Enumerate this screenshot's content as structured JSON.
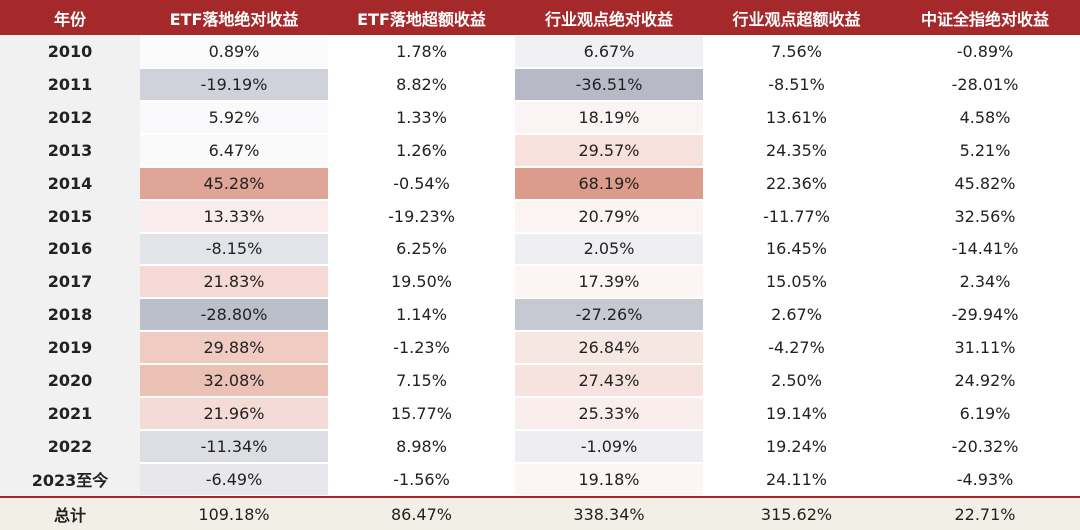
{
  "colors": {
    "header_bg": "#a5282a",
    "year_col_bg": "#f1f1f1",
    "total_bg": "#f2f0e6",
    "heat_high": "#dc9b8b",
    "heat_low": "#b4b8c4",
    "neutral": "#ffffff"
  },
  "headers": [
    "年份",
    "ETF落地绝对收益",
    "ETF落地超额收益",
    "行业观点绝对收益",
    "行业观点超额收益",
    "中证全指绝对收益"
  ],
  "rows": [
    {
      "year": "2010",
      "values": [
        "0.89%",
        "1.78%",
        "6.67%",
        "7.56%",
        "-0.89%"
      ],
      "bg": [
        "#fbfbfc",
        "#ffffff",
        "#f1f1f4",
        "#ffffff",
        "#ffffff"
      ]
    },
    {
      "year": "2011",
      "values": [
        "-19.19%",
        "8.82%",
        "-36.51%",
        "-8.51%",
        "-28.01%"
      ],
      "bg": [
        "#cfd2da",
        "#ffffff",
        "#b7bac6",
        "#ffffff",
        "#ffffff"
      ]
    },
    {
      "year": "2012",
      "values": [
        "5.92%",
        "1.33%",
        "18.19%",
        "13.61%",
        "4.58%"
      ],
      "bg": [
        "#fafafc",
        "#ffffff",
        "#fbf4f4",
        "#ffffff",
        "#ffffff"
      ]
    },
    {
      "year": "2013",
      "values": [
        "6.47%",
        "1.26%",
        "29.57%",
        "24.35%",
        "5.21%"
      ],
      "bg": [
        "#fbfafb",
        "#ffffff",
        "#f6e1dc",
        "#ffffff",
        "#ffffff"
      ]
    },
    {
      "year": "2014",
      "values": [
        "45.28%",
        "-0.54%",
        "68.19%",
        "22.36%",
        "45.82%"
      ],
      "bg": [
        "#dfa597",
        "#ffffff",
        "#dc9c8b",
        "#ffffff",
        "#ffffff"
      ]
    },
    {
      "year": "2015",
      "values": [
        "13.33%",
        "-19.23%",
        "20.79%",
        "-11.77%",
        "32.56%"
      ],
      "bg": [
        "#f8ecec",
        "#ffffff",
        "#fbf4f3",
        "#ffffff",
        "#ffffff"
      ]
    },
    {
      "year": "2016",
      "values": [
        "-8.15%",
        "6.25%",
        "2.05%",
        "16.45%",
        "-14.41%"
      ],
      "bg": [
        "#e3e4e9",
        "#ffffff",
        "#efeff2",
        "#ffffff",
        "#ffffff"
      ]
    },
    {
      "year": "2017",
      "values": [
        "21.83%",
        "19.50%",
        "17.39%",
        "15.05%",
        "2.34%"
      ],
      "bg": [
        "#f4d9d4",
        "#ffffff",
        "#fbf5f4",
        "#ffffff",
        "#ffffff"
      ]
    },
    {
      "year": "2018",
      "values": [
        "-28.80%",
        "1.14%",
        "-27.26%",
        "2.67%",
        "-29.94%"
      ],
      "bg": [
        "#bbbfca",
        "#ffffff",
        "#c6c9d2",
        "#ffffff",
        "#ffffff"
      ]
    },
    {
      "year": "2019",
      "values": [
        "29.88%",
        "-1.23%",
        "26.84%",
        "-4.27%",
        "31.11%"
      ],
      "bg": [
        "#efcbc2",
        "#ffffff",
        "#f7e7e3",
        "#ffffff",
        "#ffffff"
      ]
    },
    {
      "year": "2020",
      "values": [
        "32.08%",
        "7.15%",
        "27.43%",
        "2.50%",
        "24.92%"
      ],
      "bg": [
        "#ebc0b5",
        "#ffffff",
        "#f6e3df",
        "#ffffff",
        "#ffffff"
      ]
    },
    {
      "year": "2021",
      "values": [
        "21.96%",
        "15.77%",
        "25.33%",
        "19.14%",
        "6.19%"
      ],
      "bg": [
        "#f5dbd6",
        "#ffffff",
        "#f9eeec",
        "#ffffff",
        "#ffffff"
      ]
    },
    {
      "year": "2022",
      "values": [
        "-11.34%",
        "8.98%",
        "-1.09%",
        "19.24%",
        "-20.32%"
      ],
      "bg": [
        "#dcdee4",
        "#ffffff",
        "#eeeef2",
        "#ffffff",
        "#ffffff"
      ]
    },
    {
      "year": "2023至今",
      "values": [
        "-6.49%",
        "-1.56%",
        "19.18%",
        "24.11%",
        "-4.93%"
      ],
      "bg": [
        "#e7e7ec",
        "#ffffff",
        "#fbf5f4",
        "#ffffff",
        "#ffffff"
      ]
    }
  ],
  "total": {
    "label": "总计",
    "values": [
      "109.18%",
      "86.47%",
      "338.34%",
      "315.62%",
      "22.71%"
    ]
  }
}
